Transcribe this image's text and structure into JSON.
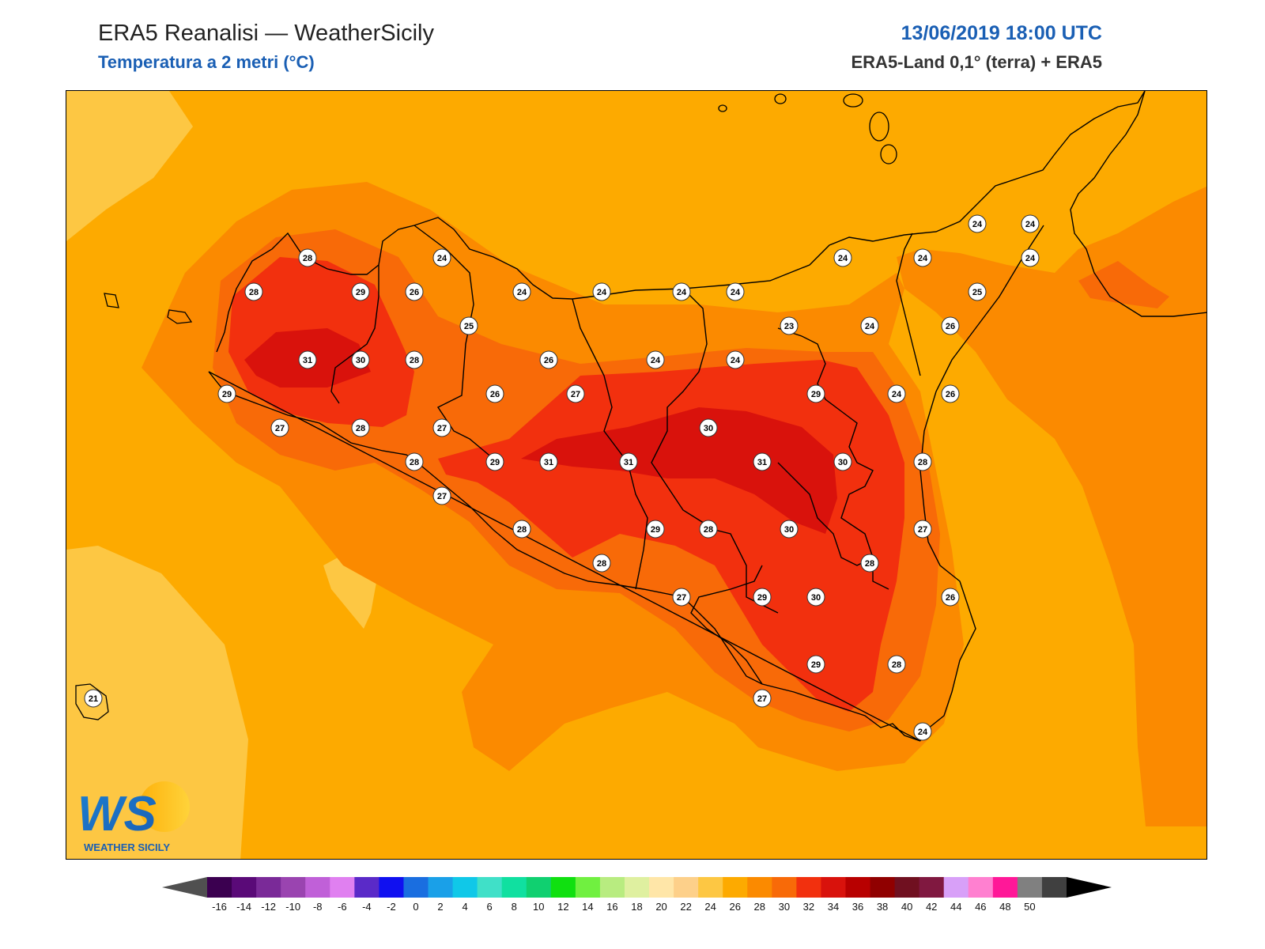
{
  "header": {
    "title": "ERA5 Reanalisi — WeatherSicily",
    "subtitle": "Temperatura a 2 metri (°C)",
    "datetime": "13/06/2019 18:00 UTC",
    "source": "ERA5-Land 0,1° (terra) + ERA5"
  },
  "logo": {
    "initials": "WS",
    "name": "WEATHER SICILY"
  },
  "colors": {
    "accent": "#1a5fb4",
    "t20": "#fdc743",
    "t22": "#fdaa00",
    "t24": "#fb8a00",
    "t26": "#f86a08",
    "t28": "#f2300e",
    "t30": "#d9120c",
    "t32": "#b80000"
  },
  "station_labels": [
    {
      "value": "28"
    },
    {
      "value": "24"
    },
    {
      "value": "28"
    },
    {
      "value": "29"
    },
    {
      "value": "26"
    },
    {
      "value": "24"
    },
    {
      "value": "24"
    },
    {
      "value": "24"
    },
    {
      "value": "24"
    },
    {
      "value": "24"
    },
    {
      "value": "24"
    },
    {
      "value": "24"
    },
    {
      "value": "24"
    },
    {
      "value": "24"
    },
    {
      "value": "25"
    },
    {
      "value": "25"
    },
    {
      "value": "23"
    },
    {
      "value": "24"
    },
    {
      "value": "26"
    },
    {
      "value": "31"
    },
    {
      "value": "30"
    },
    {
      "value": "28"
    },
    {
      "value": "26"
    },
    {
      "value": "24"
    },
    {
      "value": "24"
    },
    {
      "value": "29"
    },
    {
      "value": "26"
    },
    {
      "value": "27"
    },
    {
      "value": "29"
    },
    {
      "value": "24"
    },
    {
      "value": "26"
    },
    {
      "value": "27"
    },
    {
      "value": "28"
    },
    {
      "value": "27"
    },
    {
      "value": "30"
    },
    {
      "value": "28"
    },
    {
      "value": "29"
    },
    {
      "value": "31"
    },
    {
      "value": "31"
    },
    {
      "value": "31"
    },
    {
      "value": "30"
    },
    {
      "value": "28"
    },
    {
      "value": "27"
    },
    {
      "value": "28"
    },
    {
      "value": "29"
    },
    {
      "value": "28"
    },
    {
      "value": "30"
    },
    {
      "value": "27"
    },
    {
      "value": "28"
    },
    {
      "value": "28"
    },
    {
      "value": "27"
    },
    {
      "value": "29"
    },
    {
      "value": "30"
    },
    {
      "value": "26"
    },
    {
      "value": "29"
    },
    {
      "value": "28"
    },
    {
      "value": "27"
    },
    {
      "value": "24"
    },
    {
      "value": "21"
    }
  ],
  "colorbar": {
    "ticks": [
      "-16",
      "-14",
      "-12",
      "-10",
      "-8",
      "-6",
      "-4",
      "-2",
      "0",
      "2",
      "4",
      "6",
      "8",
      "10",
      "12",
      "14",
      "16",
      "18",
      "20",
      "22",
      "24",
      "26",
      "28",
      "30",
      "32",
      "34",
      "36",
      "38",
      "40",
      "42",
      "44",
      "46",
      "48",
      "50"
    ],
    "colors": [
      "#3b0050",
      "#5a0a78",
      "#7a2a98",
      "#9a44b0",
      "#c060d8",
      "#e080f0",
      "#5a2ac8",
      "#1010f0",
      "#1a6ee0",
      "#1aa0e8",
      "#10c8e8",
      "#40e0c8",
      "#10e0a0",
      "#10d070",
      "#10e010",
      "#70f040",
      "#b8ec80",
      "#dff0a0",
      "#ffe6a8",
      "#fdd08a",
      "#fdc743",
      "#fdaa00",
      "#fb8a00",
      "#f86a08",
      "#f2300e",
      "#d9120c",
      "#b80000",
      "#900000",
      "#701020",
      "#801840",
      "#d8a0f8",
      "#ff80d0",
      "#ff1898",
      "#808080",
      "#404040"
    ]
  }
}
